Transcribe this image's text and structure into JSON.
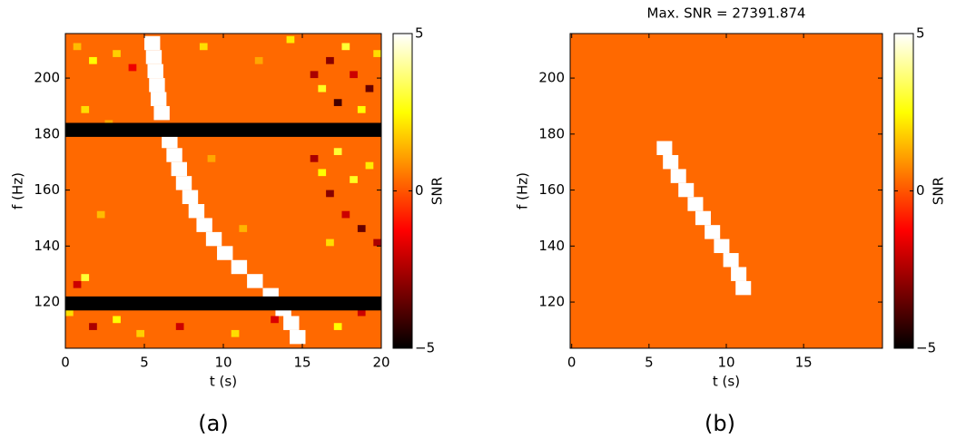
{
  "chart_data": [
    {
      "type": "heatmap",
      "caption": "(a)",
      "xlabel": "t (s)",
      "ylabel": "f (Hz)",
      "colorbar_label": "SNR",
      "xlim": [
        0,
        20
      ],
      "ylim": [
        103.5,
        215.9
      ],
      "xticks": [
        0,
        5,
        10,
        15,
        20
      ],
      "yticks": [
        120,
        140,
        160,
        180,
        200
      ],
      "clim": [
        -5,
        5
      ],
      "cticks": [
        {
          "value": -5,
          "label": "−5"
        },
        0,
        5
      ],
      "colormap": "hot",
      "background_value": 0.3,
      "cells": [
        [
          0.5,
          210,
          1.5
        ],
        [
          1.5,
          205,
          2.5
        ],
        [
          3,
          207.5,
          1.8
        ],
        [
          4,
          202.5,
          -1.5
        ],
        [
          8.5,
          210,
          2
        ],
        [
          12,
          205,
          1.2
        ],
        [
          14,
          212.5,
          2.2
        ],
        [
          15.5,
          200,
          -2.5
        ],
        [
          16,
          195,
          2.8
        ],
        [
          16.5,
          205,
          -3
        ],
        [
          17,
          190,
          -4
        ],
        [
          17.5,
          210,
          3
        ],
        [
          18,
          200,
          -2
        ],
        [
          18.5,
          187.5,
          2.5
        ],
        [
          19,
          195,
          -3.5
        ],
        [
          19.5,
          207.5,
          2
        ],
        [
          1,
          187.5,
          2
        ],
        [
          2.5,
          182.5,
          1.2
        ],
        [
          15.5,
          170,
          -2.5
        ],
        [
          16,
          165,
          2.5
        ],
        [
          16.5,
          157.5,
          -3
        ],
        [
          17,
          172.5,
          3
        ],
        [
          17.5,
          150,
          -2
        ],
        [
          18,
          162.5,
          2.8
        ],
        [
          18.5,
          145,
          -3.5
        ],
        [
          19,
          167.5,
          2.2
        ],
        [
          19.5,
          140,
          -2.5
        ],
        [
          16.5,
          140,
          2
        ],
        [
          1,
          127.5,
          3
        ],
        [
          0.5,
          125,
          -2
        ],
        [
          0,
          115,
          2
        ],
        [
          1.5,
          110,
          -2.5
        ],
        [
          3,
          112.5,
          2.5
        ],
        [
          4.5,
          107.5,
          1.8
        ],
        [
          7,
          110,
          -2
        ],
        [
          10.5,
          107.5,
          2
        ],
        [
          13,
          112.5,
          -1.8
        ],
        [
          17,
          110,
          2.5
        ],
        [
          18.5,
          115,
          -2
        ],
        [
          2,
          150,
          1.5
        ],
        [
          9,
          170,
          1.2
        ],
        [
          11,
          145,
          1.4
        ]
      ],
      "masked_bands": [
        [
          179,
          184
        ],
        [
          117,
          122
        ]
      ],
      "masked_color": "#000000",
      "track_value": 5,
      "track_width": 1,
      "track_height": 5,
      "track": {
        "t": [
          5.0,
          5.1,
          5.2,
          5.3,
          5.4,
          5.6,
          6.1,
          6.4,
          6.7,
          7.0,
          7.4,
          7.8,
          8.3,
          8.9,
          9.6,
          10.5,
          11.5,
          12.5,
          13.3,
          13.8,
          14.2
        ],
        "f": [
          210,
          205,
          200,
          195,
          190,
          185,
          175,
          170,
          165,
          160,
          155,
          150,
          145,
          140,
          135,
          130,
          125,
          120,
          115,
          110,
          105
        ]
      }
    },
    {
      "type": "heatmap",
      "caption": "(b)",
      "title": "Max. SNR = 27391.874",
      "xlabel": "t (s)",
      "ylabel": "f (Hz)",
      "colorbar_label": "SNR",
      "xlim": [
        -0.1,
        20.1
      ],
      "ylim": [
        103.5,
        215.9
      ],
      "xticks": [
        0,
        5,
        10,
        15
      ],
      "yticks": [
        120,
        140,
        160,
        180,
        200
      ],
      "clim": [
        -5,
        5
      ],
      "cticks": [
        {
          "value": -5,
          "label": "−5"
        },
        0,
        5
      ],
      "colormap": "hot",
      "background_value": 0.3,
      "track_value": 5,
      "track_width": 1,
      "track_height": 5,
      "track": {
        "t": [
          5.5,
          5.9,
          6.4,
          6.9,
          7.5,
          8.0,
          8.6,
          9.2,
          9.8,
          10.3,
          10.6
        ],
        "f": [
          172.5,
          167.5,
          162.5,
          157.5,
          152.5,
          147.5,
          142.5,
          137.5,
          132.5,
          127.5,
          122.5
        ]
      }
    }
  ]
}
